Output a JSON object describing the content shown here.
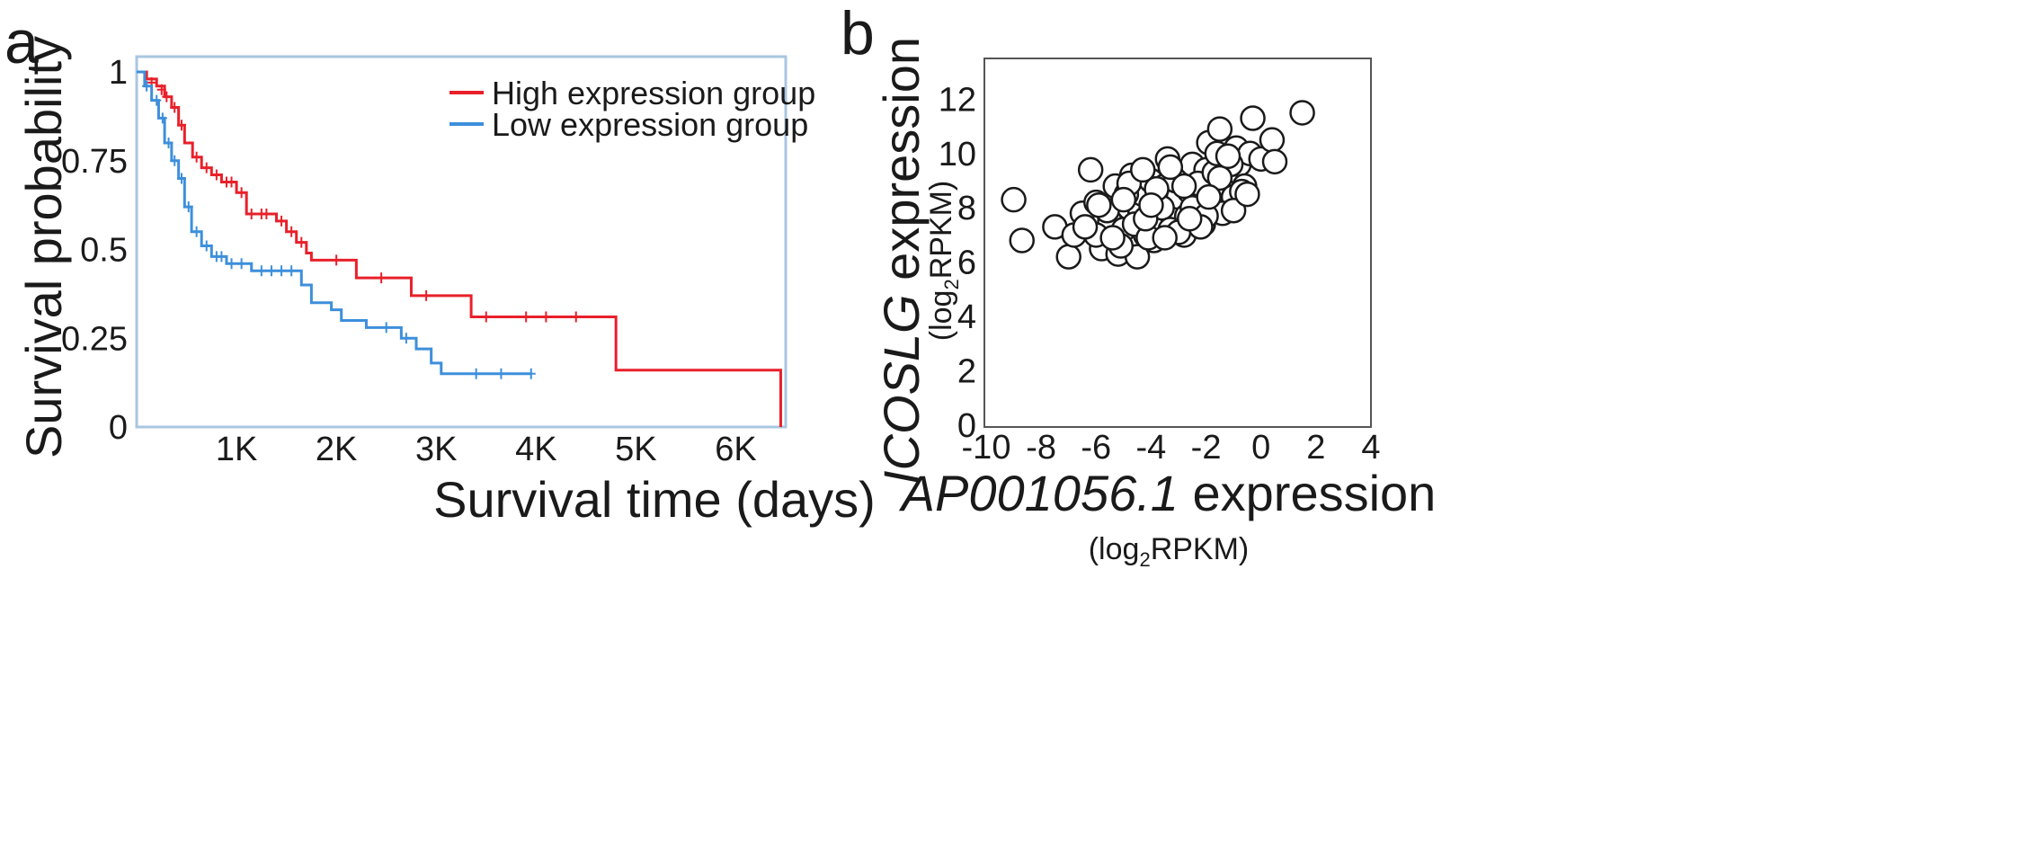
{
  "chart_data": [
    {
      "type": "line",
      "panel": "a",
      "xlabel": "Survival time (days)",
      "ylabel": "Survival probability",
      "xlim": [
        0,
        6500
      ],
      "ylim": [
        0,
        1
      ],
      "x_ticks": [
        1000,
        2000,
        3000,
        4000,
        5000,
        6000
      ],
      "x_tick_labels": [
        "1K",
        "2K",
        "3K",
        "4K",
        "5K",
        "6K"
      ],
      "y_ticks": [
        0,
        0.25,
        0.5,
        0.75,
        1
      ],
      "y_tick_labels": [
        "0",
        "0.25",
        "0.5",
        "0.75",
        "1"
      ],
      "legend_position": "top-right",
      "series": [
        {
          "name": "High expression group",
          "color": "#e8202a",
          "x": [
            0,
            100,
            200,
            280,
            350,
            420,
            480,
            560,
            650,
            750,
            850,
            1000,
            1100,
            1200,
            1400,
            1500,
            1600,
            1700,
            1750,
            2200,
            2750,
            3350,
            4800,
            6450
          ],
          "y": [
            1,
            0.98,
            0.96,
            0.93,
            0.9,
            0.85,
            0.8,
            0.76,
            0.73,
            0.71,
            0.69,
            0.66,
            0.6,
            0.6,
            0.58,
            0.55,
            0.52,
            0.49,
            0.47,
            0.42,
            0.37,
            0.31,
            0.16,
            0
          ],
          "censor_x": [
            150,
            250,
            300,
            380,
            450,
            600,
            700,
            800,
            900,
            950,
            1050,
            1150,
            1250,
            1300,
            1450,
            1550,
            1650,
            2000,
            2450,
            2900,
            3500,
            3900,
            4100,
            4400
          ],
          "censor_y": [
            0.97,
            0.95,
            0.93,
            0.9,
            0.85,
            0.76,
            0.73,
            0.71,
            0.69,
            0.69,
            0.66,
            0.6,
            0.6,
            0.6,
            0.58,
            0.55,
            0.52,
            0.47,
            0.42,
            0.37,
            0.31,
            0.31,
            0.31,
            0.31
          ]
        },
        {
          "name": "Low expression group",
          "color": "#3d8fdb",
          "x": [
            0,
            80,
            150,
            220,
            280,
            350,
            420,
            480,
            550,
            650,
            750,
            900,
            1150,
            1650,
            1750,
            1950,
            2050,
            2300,
            2650,
            2800,
            2950,
            3050,
            3950
          ],
          "y": [
            1,
            0.96,
            0.92,
            0.87,
            0.8,
            0.75,
            0.7,
            0.62,
            0.55,
            0.51,
            0.48,
            0.46,
            0.44,
            0.4,
            0.35,
            0.33,
            0.3,
            0.28,
            0.25,
            0.22,
            0.18,
            0.15,
            0.15
          ],
          "censor_x": [
            100,
            200,
            260,
            320,
            380,
            450,
            520,
            600,
            700,
            800,
            850,
            950,
            1050,
            1250,
            1350,
            1450,
            1550,
            2500,
            2700,
            3400,
            3650,
            3950
          ],
          "censor_y": [
            0.96,
            0.92,
            0.87,
            0.8,
            0.75,
            0.7,
            0.62,
            0.55,
            0.51,
            0.48,
            0.48,
            0.46,
            0.46,
            0.44,
            0.44,
            0.44,
            0.44,
            0.28,
            0.25,
            0.15,
            0.15,
            0.15
          ]
        }
      ]
    },
    {
      "type": "scatter",
      "panel": "b",
      "xlabel_italic": "AP001056.1",
      "xlabel_rest": " expression",
      "xlabel_unit_pre": "(log",
      "xlabel_unit_sub": "2",
      "xlabel_unit_post": "RPKM)",
      "ylabel_italic": "ICOSLG",
      "ylabel_rest": " expression",
      "ylabel_unit_pre": "(log",
      "ylabel_unit_sub": "2",
      "ylabel_unit_post": "RPKM)",
      "xlim": [
        -10,
        4
      ],
      "ylim": [
        0,
        13.5
      ],
      "x_ticks": [
        -10,
        -8,
        -6,
        -4,
        -2,
        0,
        2,
        4
      ],
      "x_tick_labels": [
        "-10",
        "-8",
        "-6",
        "-4",
        "-2",
        "0",
        "2",
        "4"
      ],
      "y_ticks": [
        0,
        2,
        4,
        6,
        8,
        10,
        12
      ],
      "y_tick_labels": [
        "0",
        "2",
        "4",
        "6",
        "8",
        "10",
        "12"
      ],
      "x": [
        -9.0,
        -8.7,
        -7.5,
        -7.0,
        -6.8,
        -6.5,
        -6.2,
        -6.0,
        -5.8,
        -5.5,
        -5.3,
        -5.2,
        -5.0,
        -4.8,
        -4.7,
        -4.5,
        -4.4,
        -4.3,
        -4.2,
        -4.0,
        -3.9,
        -3.8,
        -3.7,
        -3.5,
        -3.4,
        -3.2,
        -3.0,
        -2.9,
        -2.8,
        -2.6,
        -2.5,
        -2.4,
        -2.2,
        -2.0,
        -1.9,
        -1.8,
        -1.6,
        -1.5,
        -1.3,
        -1.2,
        -1.0,
        -0.9,
        -0.8,
        -0.6,
        -0.4,
        -0.3,
        0.0,
        0.4,
        0.5,
        1.5,
        -6.0,
        -5.6,
        -5.1,
        -4.9,
        -4.6,
        -4.1,
        -3.6,
        -3.3,
        -3.1,
        -2.7,
        -2.3,
        -2.1,
        -1.7,
        -1.4,
        -1.1,
        -0.7,
        -6.4,
        -5.9,
        -5.4,
        -4.8,
        -4.2,
        -3.8,
        -3.0,
        -2.5,
        -2.0,
        -1.5,
        -1.0,
        -5.0,
        -4.3,
        -3.5,
        -2.8,
        -2.2,
        -1.6,
        -4.0,
        -3.3,
        -2.6,
        -1.9,
        -1.2,
        -0.5
      ],
      "y": [
        8.3,
        6.8,
        7.3,
        6.2,
        7.0,
        7.8,
        9.4,
        8.2,
        6.5,
        7.5,
        8.8,
        6.3,
        7.2,
        8.0,
        9.2,
        6.2,
        7.8,
        8.5,
        7.0,
        9.0,
        6.8,
        8.2,
        7.5,
        8.8,
        9.8,
        7.6,
        8.4,
        9.2,
        7.0,
        8.6,
        9.6,
        7.8,
        8.2,
        9.4,
        10.4,
        8.0,
        9.0,
        10.9,
        8.6,
        9.8,
        8.4,
        10.2,
        9.6,
        8.8,
        10.0,
        11.3,
        9.8,
        10.5,
        9.7,
        11.5,
        7.0,
        7.9,
        6.6,
        8.5,
        7.4,
        6.9,
        8.0,
        7.2,
        9.0,
        7.7,
        8.9,
        7.4,
        9.3,
        7.8,
        9.6,
        8.6,
        7.3,
        8.1,
        6.9,
        8.9,
        7.6,
        8.7,
        7.1,
        8.0,
        7.7,
        9.1,
        7.9,
        8.3,
        9.4,
        6.9,
        8.8,
        7.3,
        10.0,
        8.1,
        9.5,
        7.6,
        8.4,
        9.9,
        8.5
      ]
    }
  ]
}
